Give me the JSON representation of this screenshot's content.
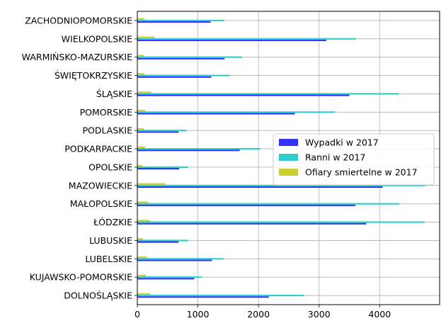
{
  "chart_data": {
    "type": "bar",
    "orientation": "horizontal",
    "categories": [
      "DOLNOŚLĄSKIE",
      "KUJAWSKO-POMORSKIE",
      "LUBELSKIE",
      "LUBUSKIE",
      "ŁÓDZKIE",
      "MAŁOPOLSKIE",
      "MAZOWIECKIE",
      "OPOLSKIE",
      "PODKARPACKIE",
      "PODLASKIE",
      "POMORSKIE",
      "ŚLĄSKIE",
      "ŚWIĘTOKRZYSKIE",
      "WARMIŃSKO-MAZURSKIE",
      "WIELKOPOLSKIE",
      "ZACHODNIOPOMORSKIE"
    ],
    "series": [
      {
        "name": "Wypadki w 2017",
        "color": "#3333ff",
        "values": [
          2170,
          940,
          1230,
          680,
          3780,
          3600,
          4050,
          690,
          1690,
          680,
          2600,
          3500,
          1220,
          1440,
          3120,
          1210
        ]
      },
      {
        "name": "Ranni w 2017",
        "color": "#33cccc",
        "values": [
          2750,
          1060,
          1420,
          840,
          4740,
          4320,
          4750,
          840,
          2030,
          810,
          3260,
          4320,
          1520,
          1730,
          3610,
          1430
        ]
      },
      {
        "name": "Ofiary smiertelne w 2017",
        "color": "#cccc33",
        "values": [
          210,
          140,
          160,
          90,
          210,
          180,
          460,
          80,
          130,
          110,
          130,
          230,
          120,
          110,
          280,
          120
        ]
      }
    ],
    "xticks": [
      "0",
      "1000",
      "2000",
      "3000",
      "4000"
    ],
    "xlim": [
      0,
      4990
    ],
    "grid": true,
    "legend_position": "center-right",
    "title": "",
    "xlabel": "",
    "ylabel": ""
  }
}
